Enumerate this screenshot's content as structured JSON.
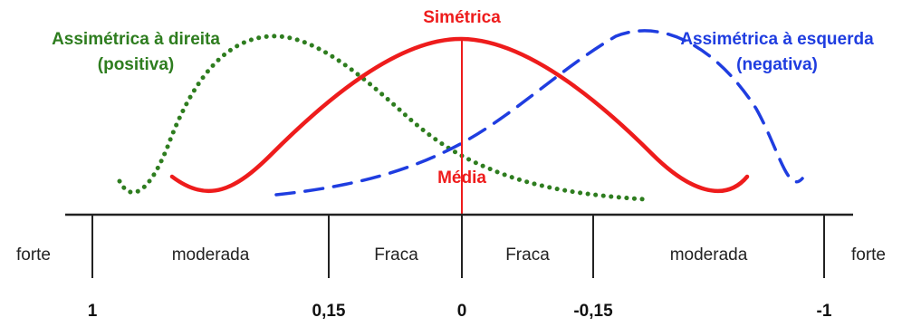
{
  "curves": {
    "positive": {
      "label_line1": "Assimétrica à direita",
      "label_line2": "(positiva)",
      "color": "#2e7d1f",
      "style": "dotted"
    },
    "symmetric": {
      "label": "Simétrica",
      "color": "#ee1c1c",
      "style": "solid"
    },
    "negative": {
      "label_line1": "Assimétrica à esquerda",
      "label_line2": "(negativa)",
      "color": "#1f3de0",
      "style": "dashed"
    }
  },
  "mean_label": "Média",
  "scale": {
    "regions": [
      "forte",
      "moderada",
      "Fraca",
      "Fraca",
      "moderada",
      "forte"
    ],
    "tick_values": [
      "1",
      "0,15",
      "0",
      "-0,15",
      "-1"
    ]
  }
}
